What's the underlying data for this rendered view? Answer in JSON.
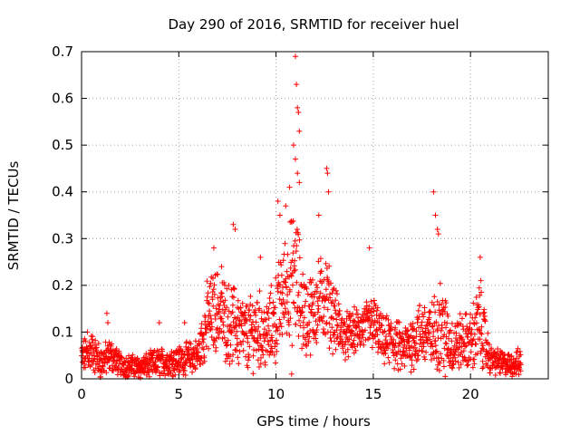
{
  "chart_data": {
    "type": "scatter",
    "title": "Day 290 of 2016, SRMTID for receiver huel",
    "xlabel": "GPS time / hours",
    "ylabel": "SRMTID / TECUs",
    "xlim": [
      0,
      24
    ],
    "ylim": [
      0,
      0.7
    ],
    "x_ticks": [
      0,
      5,
      10,
      15,
      20
    ],
    "x_tick_labels": [
      "0",
      "5",
      "10",
      "15",
      "20"
    ],
    "y_ticks": [
      0,
      0.1,
      0.2,
      0.3,
      0.4,
      0.5,
      0.6,
      0.7
    ],
    "y_tick_labels": [
      "0",
      "0.1",
      "0.2",
      "0.3",
      "0.4",
      "0.5",
      "0.6",
      "0.7"
    ],
    "grid": true,
    "marker": "+",
    "colors": {
      "series": "#ff0000",
      "grid": "#a0a0a0",
      "axis": "#000000"
    },
    "series": [
      {
        "name": "SRMTID",
        "envelope": [
          {
            "t": 0.0,
            "mean": 0.045,
            "spread": 0.03
          },
          {
            "t": 0.5,
            "mean": 0.06,
            "spread": 0.035
          },
          {
            "t": 1.0,
            "mean": 0.035,
            "spread": 0.03
          },
          {
            "t": 1.5,
            "mean": 0.05,
            "spread": 0.03
          },
          {
            "t": 2.0,
            "mean": 0.03,
            "spread": 0.02
          },
          {
            "t": 3.0,
            "mean": 0.025,
            "spread": 0.02
          },
          {
            "t": 4.0,
            "mean": 0.035,
            "spread": 0.025
          },
          {
            "t": 5.0,
            "mean": 0.04,
            "spread": 0.025
          },
          {
            "t": 6.0,
            "mean": 0.05,
            "spread": 0.03
          },
          {
            "t": 6.5,
            "mean": 0.13,
            "spread": 0.07
          },
          {
            "t": 7.0,
            "mean": 0.15,
            "spread": 0.07
          },
          {
            "t": 7.5,
            "mean": 0.12,
            "spread": 0.07
          },
          {
            "t": 8.0,
            "mean": 0.11,
            "spread": 0.07
          },
          {
            "t": 8.5,
            "mean": 0.09,
            "spread": 0.06
          },
          {
            "t": 9.0,
            "mean": 0.11,
            "spread": 0.07
          },
          {
            "t": 9.5,
            "mean": 0.09,
            "spread": 0.06
          },
          {
            "t": 10.0,
            "mean": 0.13,
            "spread": 0.08
          },
          {
            "t": 10.5,
            "mean": 0.2,
            "spread": 0.09
          },
          {
            "t": 11.0,
            "mean": 0.22,
            "spread": 0.12
          },
          {
            "t": 11.5,
            "mean": 0.13,
            "spread": 0.07
          },
          {
            "t": 12.0,
            "mean": 0.15,
            "spread": 0.07
          },
          {
            "t": 12.5,
            "mean": 0.18,
            "spread": 0.08
          },
          {
            "t": 13.0,
            "mean": 0.13,
            "spread": 0.06
          },
          {
            "t": 13.5,
            "mean": 0.09,
            "spread": 0.04
          },
          {
            "t": 14.0,
            "mean": 0.1,
            "spread": 0.04
          },
          {
            "t": 14.5,
            "mean": 0.11,
            "spread": 0.04
          },
          {
            "t": 15.0,
            "mean": 0.12,
            "spread": 0.05
          },
          {
            "t": 15.5,
            "mean": 0.08,
            "spread": 0.04
          },
          {
            "t": 16.0,
            "mean": 0.08,
            "spread": 0.05
          },
          {
            "t": 16.5,
            "mean": 0.06,
            "spread": 0.04
          },
          {
            "t": 17.0,
            "mean": 0.08,
            "spread": 0.05
          },
          {
            "t": 17.5,
            "mean": 0.1,
            "spread": 0.06
          },
          {
            "t": 18.0,
            "mean": 0.09,
            "spread": 0.06
          },
          {
            "t": 18.5,
            "mean": 0.12,
            "spread": 0.08
          },
          {
            "t": 19.0,
            "mean": 0.07,
            "spread": 0.05
          },
          {
            "t": 19.5,
            "mean": 0.08,
            "spread": 0.05
          },
          {
            "t": 20.0,
            "mean": 0.08,
            "spread": 0.05
          },
          {
            "t": 20.5,
            "mean": 0.12,
            "spread": 0.08
          },
          {
            "t": 21.0,
            "mean": 0.04,
            "spread": 0.025
          },
          {
            "t": 22.0,
            "mean": 0.03,
            "spread": 0.02
          },
          {
            "t": 22.6,
            "mean": 0.035,
            "spread": 0.025
          }
        ],
        "spikes": [
          {
            "x": 0.3,
            "y": 0.1
          },
          {
            "x": 1.3,
            "y": 0.14
          },
          {
            "x": 1.35,
            "y": 0.12
          },
          {
            "x": 4.0,
            "y": 0.12
          },
          {
            "x": 5.3,
            "y": 0.12
          },
          {
            "x": 6.8,
            "y": 0.28
          },
          {
            "x": 7.2,
            "y": 0.24
          },
          {
            "x": 7.8,
            "y": 0.33
          },
          {
            "x": 7.9,
            "y": 0.32
          },
          {
            "x": 9.2,
            "y": 0.26
          },
          {
            "x": 10.1,
            "y": 0.38
          },
          {
            "x": 10.2,
            "y": 0.35
          },
          {
            "x": 10.5,
            "y": 0.37
          },
          {
            "x": 10.7,
            "y": 0.41
          },
          {
            "x": 10.9,
            "y": 0.5
          },
          {
            "x": 11.0,
            "y": 0.69
          },
          {
            "x": 11.05,
            "y": 0.63
          },
          {
            "x": 11.1,
            "y": 0.58
          },
          {
            "x": 11.15,
            "y": 0.57
          },
          {
            "x": 11.2,
            "y": 0.53
          },
          {
            "x": 11.0,
            "y": 0.47
          },
          {
            "x": 11.1,
            "y": 0.44
          },
          {
            "x": 11.2,
            "y": 0.42
          },
          {
            "x": 12.2,
            "y": 0.35
          },
          {
            "x": 12.6,
            "y": 0.45
          },
          {
            "x": 12.65,
            "y": 0.44
          },
          {
            "x": 12.7,
            "y": 0.4
          },
          {
            "x": 14.8,
            "y": 0.28
          },
          {
            "x": 18.1,
            "y": 0.4
          },
          {
            "x": 18.2,
            "y": 0.35
          },
          {
            "x": 18.3,
            "y": 0.32
          },
          {
            "x": 18.35,
            "y": 0.31
          },
          {
            "x": 20.5,
            "y": 0.26
          },
          {
            "x": 10.8,
            "y": 0.01
          },
          {
            "x": 18.7,
            "y": 0.005
          }
        ]
      }
    ]
  }
}
